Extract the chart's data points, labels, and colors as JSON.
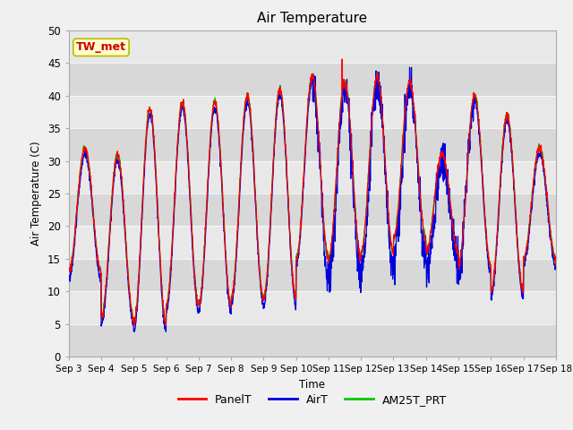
{
  "title": "Air Temperature",
  "ylabel": "Air Temperature (C)",
  "xlabel": "Time",
  "annotation": "TW_met",
  "ylim": [
    0,
    50
  ],
  "yticks": [
    0,
    5,
    10,
    15,
    20,
    25,
    30,
    35,
    40,
    45,
    50
  ],
  "xtick_labels": [
    "Sep 3",
    "Sep 4",
    "Sep 5",
    "Sep 6",
    "Sep 7",
    "Sep 8",
    "Sep 9",
    "Sep 10",
    "Sep 11",
    "Sep 12",
    "Sep 13",
    "Sep 14",
    "Sep 15",
    "Sep 16",
    "Sep 17",
    "Sep 18"
  ],
  "colors": {
    "PanelT": "#ff0000",
    "AirT": "#0000dd",
    "AM25T_PRT": "#00cc00"
  },
  "bg_outer": "#f0f0f0",
  "band_light": "#e8e8e8",
  "band_dark": "#d8d8d8",
  "daily_max": [
    32,
    31,
    38,
    39,
    39,
    40,
    41,
    43,
    42,
    43,
    42,
    31,
    40,
    37,
    32,
    33
  ],
  "daily_min": [
    13,
    6,
    5,
    8,
    8,
    9,
    9,
    15,
    15,
    16,
    18,
    16,
    14,
    10,
    15,
    14
  ],
  "spike_day": 10.42,
  "spike_value": 46.0,
  "figsize": [
    6.4,
    4.8
  ],
  "dpi": 100
}
